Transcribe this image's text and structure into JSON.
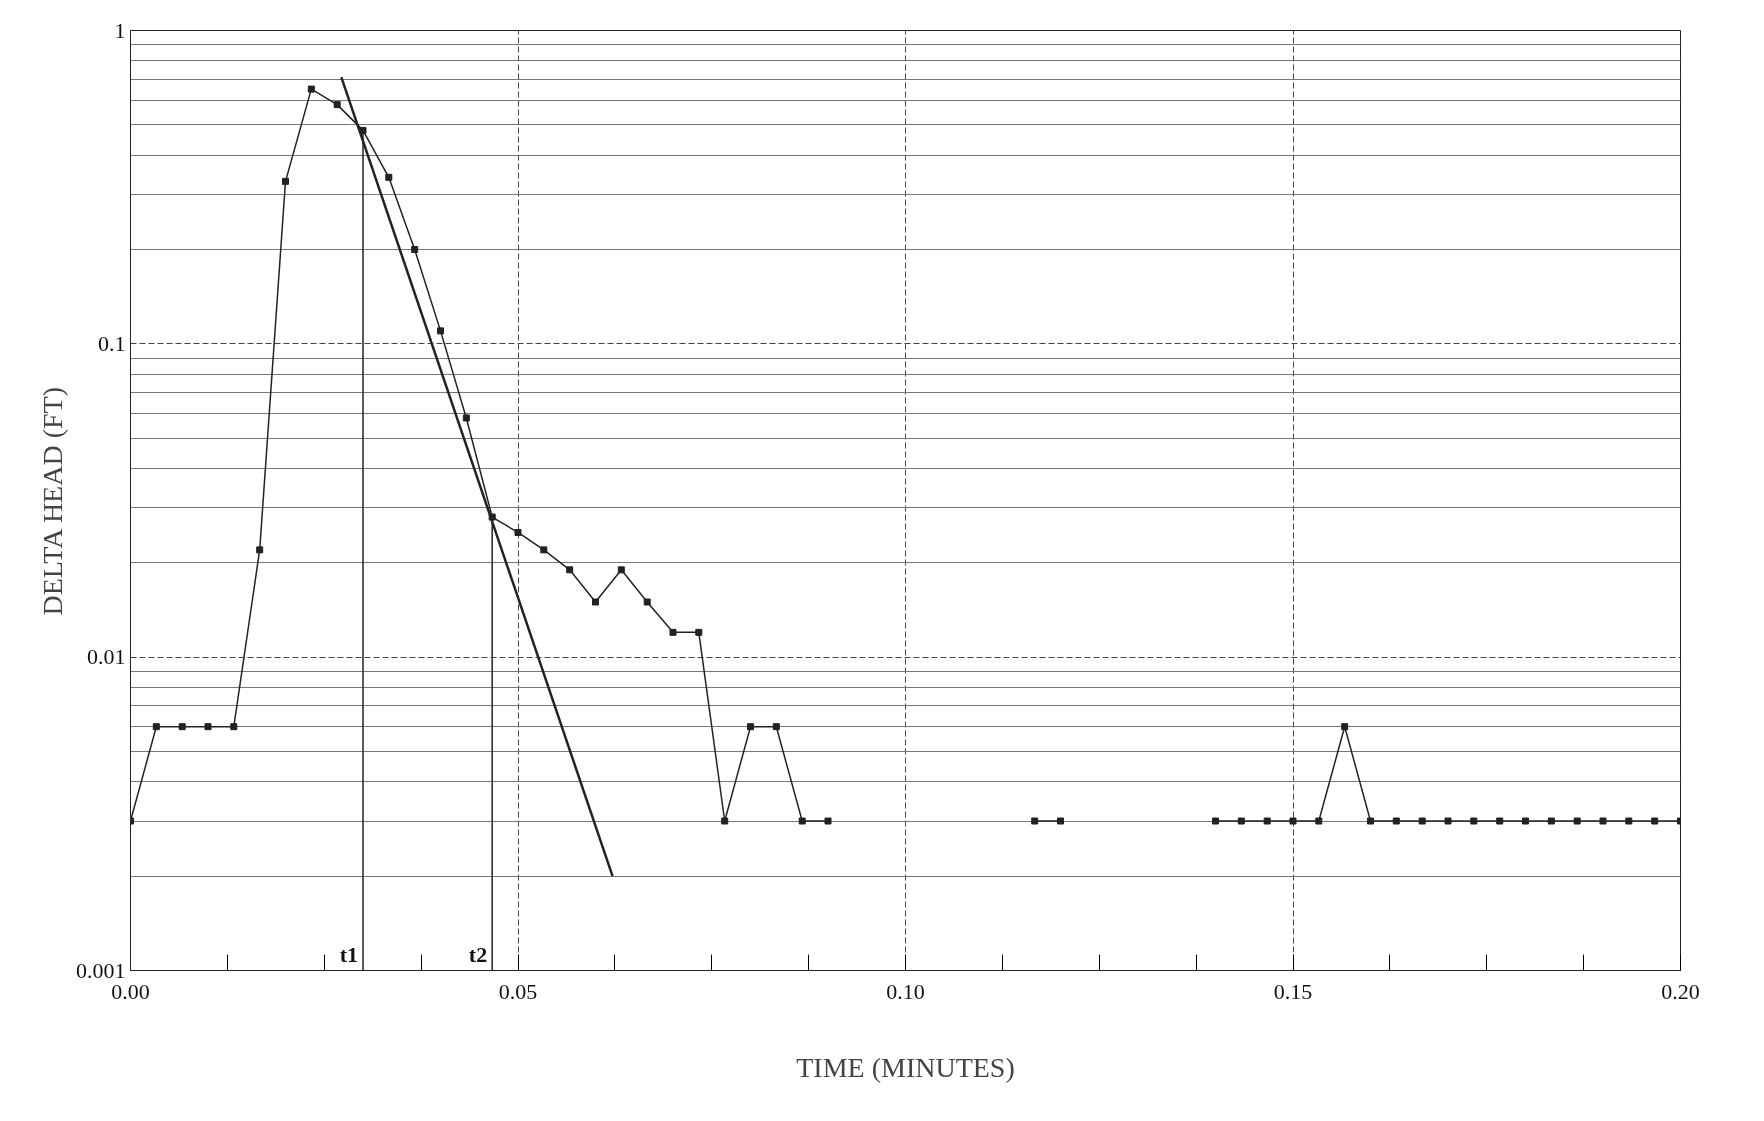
{
  "chart_data": {
    "type": "line",
    "xlabel": "TIME (MINUTES)",
    "ylabel": "DELTA HEAD (FT)",
    "log": "y",
    "grid": true,
    "marker": "square",
    "line_style": "solid",
    "xlim": [
      0,
      0.2
    ],
    "xticks": [
      {
        "value": 0,
        "label": "0.00"
      },
      {
        "value": 0.05,
        "label": "0.05"
      },
      {
        "value": 0.1,
        "label": "0.10"
      },
      {
        "value": 0.15,
        "label": "0.15"
      },
      {
        "value": 0.2,
        "label": "0.20"
      }
    ],
    "ylim": [
      0.001,
      1
    ],
    "yticks": [
      0.001,
      0.01,
      0.1,
      1
    ],
    "series": [
      {
        "color": "#222222",
        "x": [
          0,
          0.00333,
          0.00667,
          0.01,
          0.01333,
          0.01667,
          0.02,
          0.02333,
          0.02667,
          0.03,
          0.03333,
          0.03667,
          0.04,
          0.04333,
          0.04667,
          0.05,
          0.05333,
          0.05667,
          0.06,
          0.06333,
          0.06667,
          0.07,
          0.07333,
          0.07667,
          0.08,
          0.08333,
          0.08667,
          0.09,
          0.09333,
          0.11667,
          0.12,
          0.12333,
          0.14,
          0.14333,
          0.14667,
          0.15,
          0.15333,
          0.15667,
          0.16,
          0.16333,
          0.16667,
          0.17,
          0.17333,
          0.17667,
          0.18,
          0.18333,
          0.18667,
          0.19,
          0.19333,
          0.19667,
          0.2
        ],
        "values": [
          0.003,
          0.006,
          0.006,
          0.006,
          0.006,
          0.022,
          0.33,
          0.65,
          0.58,
          0.48,
          0.34,
          0.2,
          0.11,
          0.058,
          0.028,
          0.025,
          0.022,
          0.019,
          0.015,
          0.019,
          0.015,
          0.012,
          0.012,
          0.003,
          0.006,
          0.006,
          0.003,
          0.003,
          null,
          0.003,
          0.003,
          null,
          0.003,
          0.003,
          0.003,
          0.003,
          0.003,
          0.006,
          0.003,
          0.003,
          0.003,
          0.003,
          0.003,
          0.003,
          0.003,
          0.003,
          0.003,
          0.003,
          0.003,
          0.003,
          0.003
        ]
      },
      {
        "color": "#222222",
        "marker": "none",
        "x": [
          0.0272,
          0.0622
        ],
        "values": [
          0.71,
          0.002
        ]
      },
      {
        "color": "#222222",
        "marker": "none",
        "x": [
          0.03,
          0.03
        ],
        "values": [
          0.001,
          0.48
        ]
      },
      {
        "color": "#222222",
        "marker": "none",
        "x": [
          0.04667,
          0.04667
        ],
        "values": [
          0.001,
          0.028
        ]
      }
    ],
    "annotations": [
      {
        "text": "t1",
        "x": 0.03,
        "y": 0.001
      },
      {
        "text": "t2",
        "x": 0.04667,
        "y": 0.001
      }
    ]
  }
}
